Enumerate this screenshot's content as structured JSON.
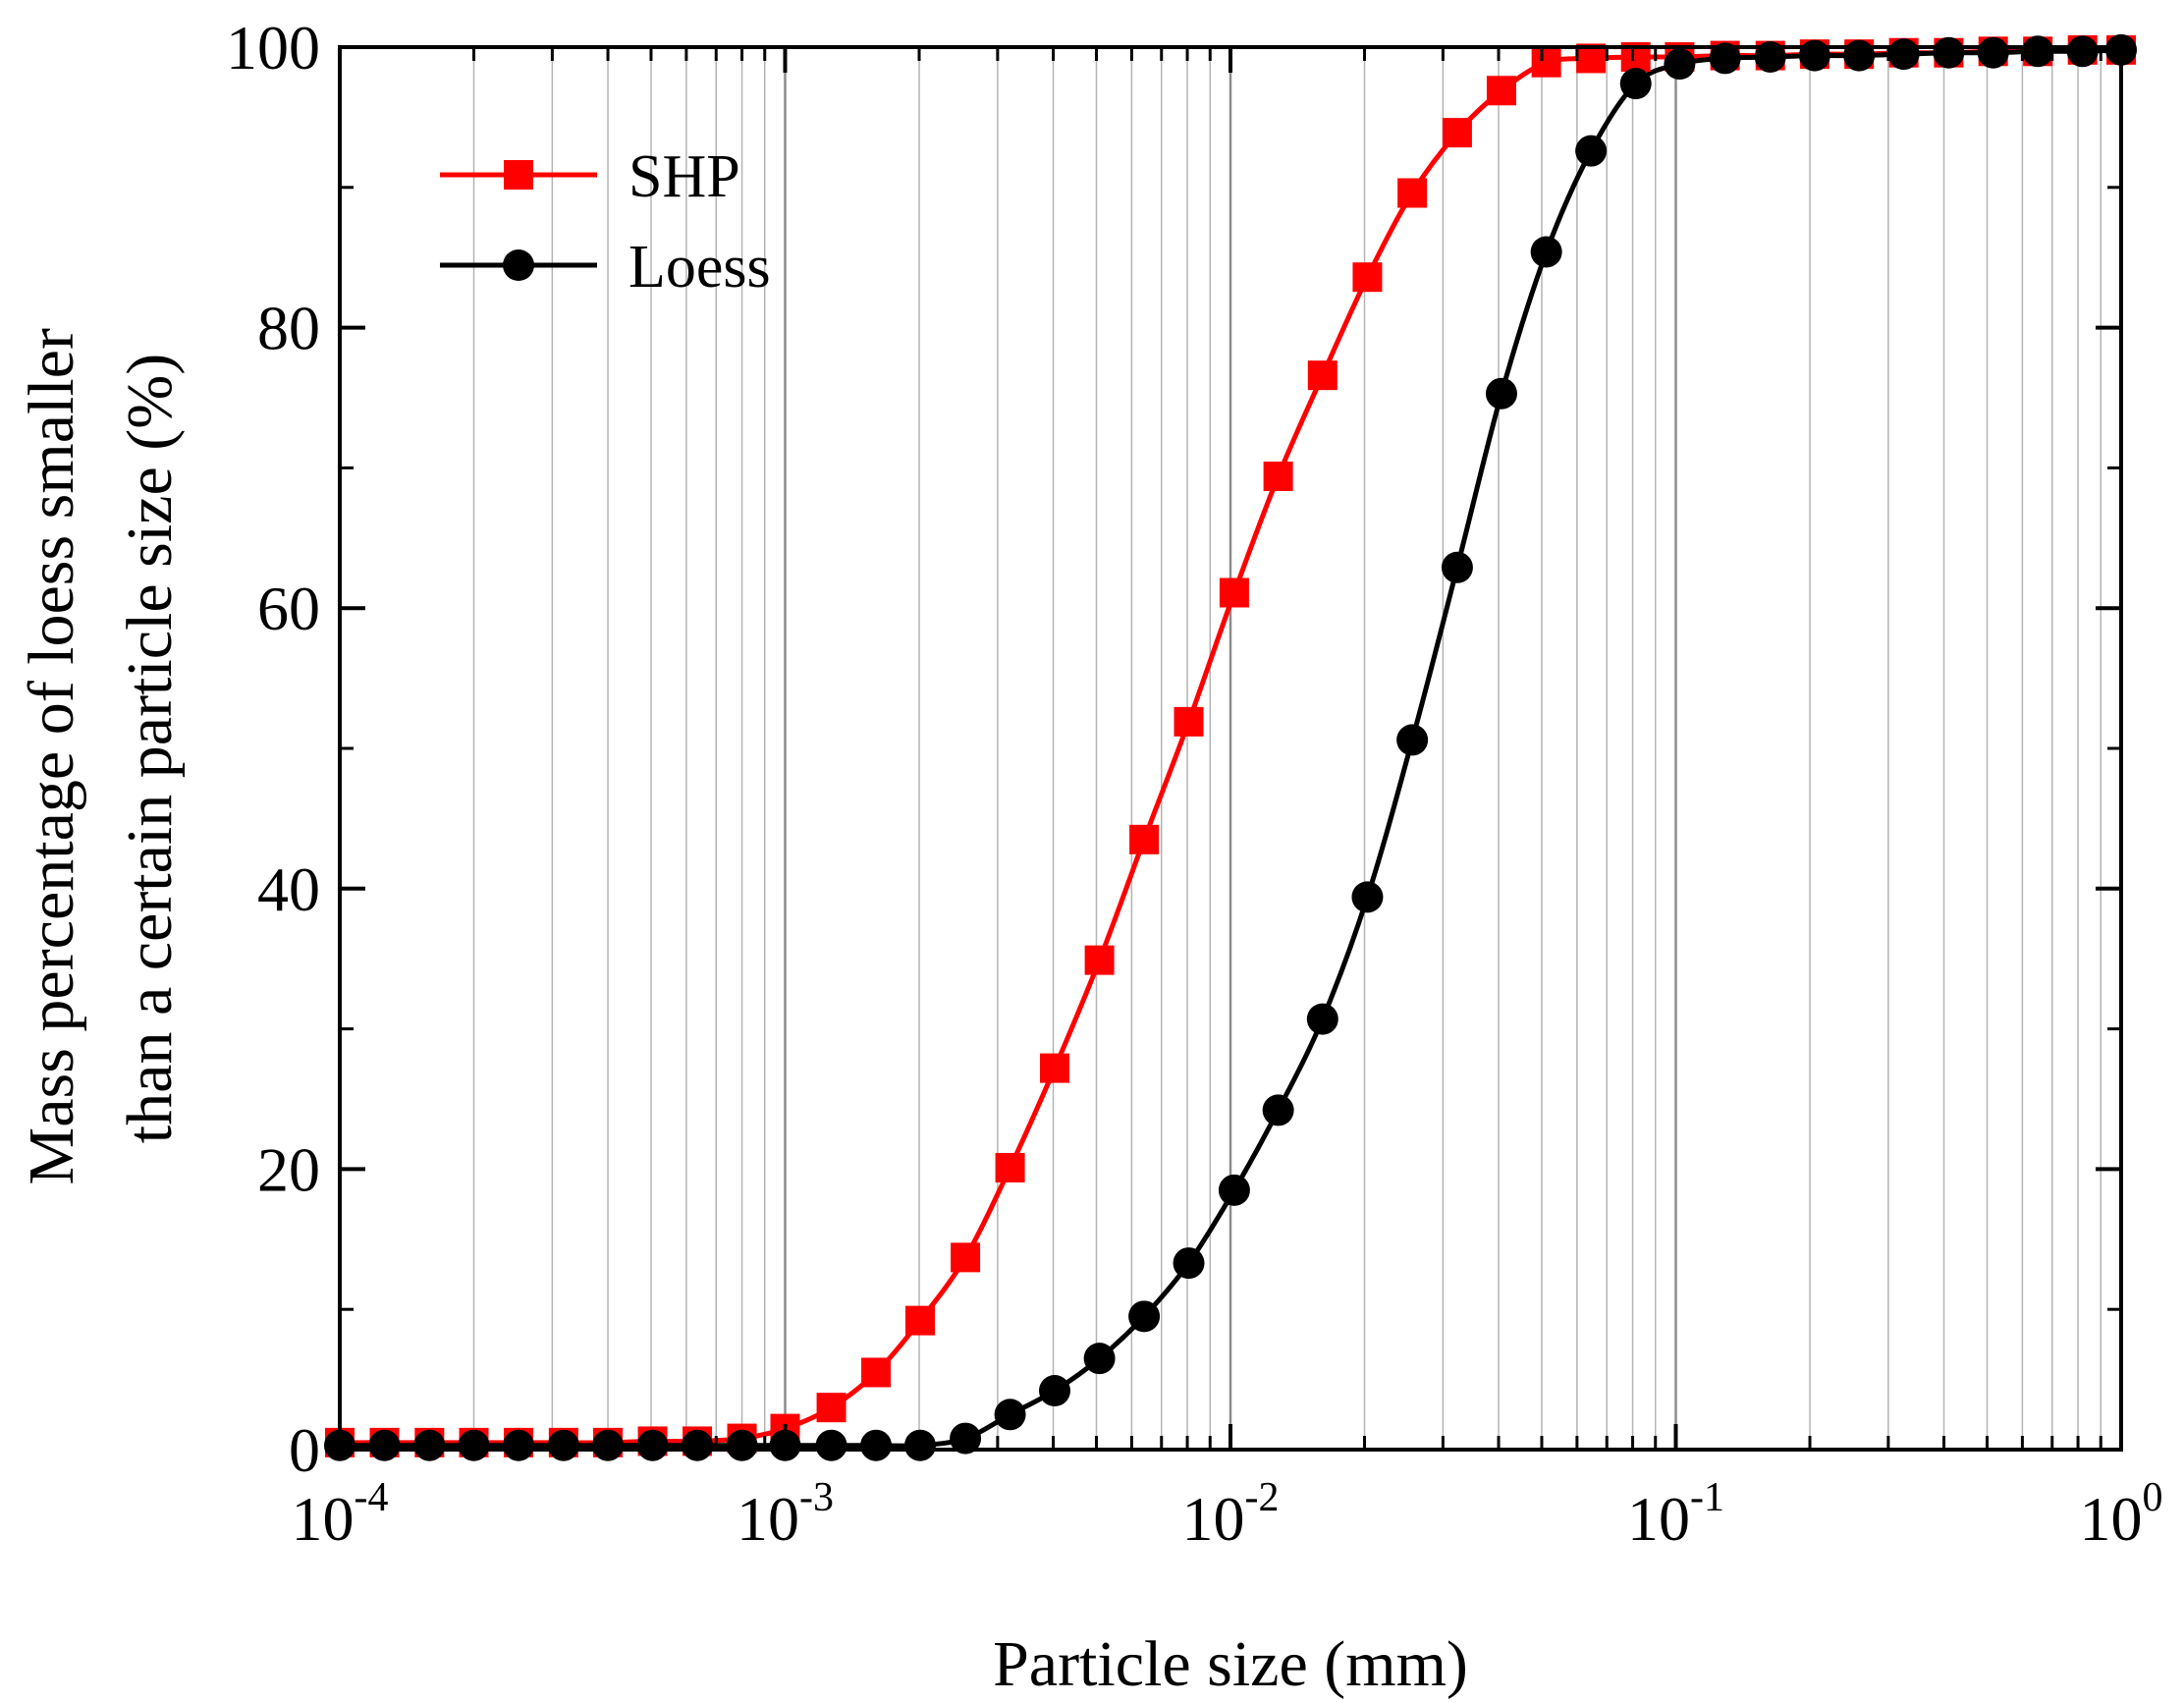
{
  "chart_data": {
    "type": "line",
    "title": "",
    "xlabel": "Particle size (mm)",
    "ylabel_lines": [
      "Mass percentage of loess smaller",
      "than a certain particle size (%)"
    ],
    "x_scale": "log",
    "xlim": [
      0.0001,
      1
    ],
    "ylim": [
      0,
      100
    ],
    "x_ticks": [
      {
        "base": "10",
        "exp": "-4"
      },
      {
        "base": "10",
        "exp": "-3"
      },
      {
        "base": "10",
        "exp": "-2"
      },
      {
        "base": "10",
        "exp": "-1"
      },
      {
        "base": "10",
        "exp": "0"
      }
    ],
    "y_ticks": [
      "0",
      "20",
      "40",
      "60",
      "80",
      "100"
    ],
    "grid": "vertical minor and major log gridlines",
    "legend_position": "top-left",
    "series": [
      {
        "name": "SHP",
        "color": "#ff0000",
        "marker": "square",
        "points": [
          [
            0.0001,
            0.5
          ],
          [
            0.000126,
            0.5
          ],
          [
            0.000159,
            0.5
          ],
          [
            0.0002,
            0.5
          ],
          [
            0.000252,
            0.5
          ],
          [
            0.000318,
            0.5
          ],
          [
            0.0004,
            0.5
          ],
          [
            0.000504,
            0.6
          ],
          [
            0.000635,
            0.6
          ],
          [
            0.0008,
            0.8
          ],
          [
            0.001,
            1.5
          ],
          [
            0.00127,
            3.0
          ],
          [
            0.0016,
            5.5
          ],
          [
            0.00201,
            9.2
          ],
          [
            0.00254,
            13.7
          ],
          [
            0.0032,
            20.1
          ],
          [
            0.00403,
            27.2
          ],
          [
            0.00508,
            34.9
          ],
          [
            0.0064,
            43.5
          ],
          [
            0.00806,
            51.9
          ],
          [
            0.0102,
            61.1
          ],
          [
            0.0128,
            69.4
          ],
          [
            0.0161,
            76.6
          ],
          [
            0.0203,
            83.6
          ],
          [
            0.0256,
            89.6
          ],
          [
            0.0323,
            93.9
          ],
          [
            0.0406,
            96.9
          ],
          [
            0.0512,
            98.9
          ],
          [
            0.0645,
            99.2
          ],
          [
            0.0813,
            99.3
          ],
          [
            0.102,
            99.3
          ],
          [
            0.129,
            99.4
          ],
          [
            0.163,
            99.4
          ],
          [
            0.205,
            99.5
          ],
          [
            0.258,
            99.5
          ],
          [
            0.325,
            99.6
          ],
          [
            0.41,
            99.6
          ],
          [
            0.516,
            99.7
          ],
          [
            0.65,
            99.7
          ],
          [
            0.819,
            99.8
          ],
          [
            1.0,
            99.8
          ]
        ]
      },
      {
        "name": "Loess",
        "color": "#000000",
        "marker": "circle",
        "points": [
          [
            0.0001,
            0.3
          ],
          [
            0.000126,
            0.3
          ],
          [
            0.000159,
            0.3
          ],
          [
            0.0002,
            0.3
          ],
          [
            0.000252,
            0.3
          ],
          [
            0.000318,
            0.3
          ],
          [
            0.0004,
            0.3
          ],
          [
            0.000504,
            0.3
          ],
          [
            0.000635,
            0.3
          ],
          [
            0.0008,
            0.3
          ],
          [
            0.001,
            0.3
          ],
          [
            0.00127,
            0.3
          ],
          [
            0.0016,
            0.3
          ],
          [
            0.00201,
            0.3
          ],
          [
            0.00254,
            0.8
          ],
          [
            0.0032,
            2.5
          ],
          [
            0.00403,
            4.2
          ],
          [
            0.00508,
            6.5
          ],
          [
            0.0064,
            9.5
          ],
          [
            0.00806,
            13.3
          ],
          [
            0.0102,
            18.5
          ],
          [
            0.0128,
            24.2
          ],
          [
            0.0161,
            30.7
          ],
          [
            0.0203,
            39.4
          ],
          [
            0.0256,
            50.6
          ],
          [
            0.0323,
            62.9
          ],
          [
            0.0406,
            75.3
          ],
          [
            0.0512,
            85.4
          ],
          [
            0.0645,
            92.6
          ],
          [
            0.0813,
            97.4
          ],
          [
            0.102,
            98.8
          ],
          [
            0.129,
            99.2
          ],
          [
            0.163,
            99.3
          ],
          [
            0.205,
            99.4
          ],
          [
            0.258,
            99.4
          ],
          [
            0.325,
            99.5
          ],
          [
            0.41,
            99.6
          ],
          [
            0.516,
            99.6
          ],
          [
            0.65,
            99.7
          ],
          [
            0.819,
            99.7
          ],
          [
            1.0,
            99.8
          ]
        ]
      }
    ]
  }
}
